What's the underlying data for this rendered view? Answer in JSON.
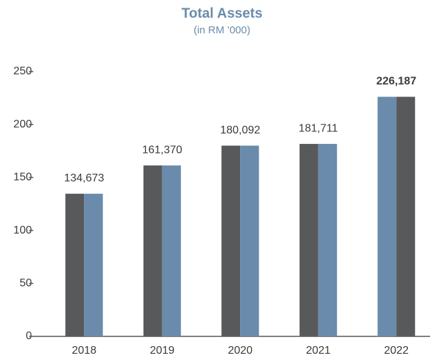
{
  "chart_data": {
    "type": "bar",
    "title": "Total Assets",
    "subtitle": "(in RM ’000)",
    "categories": [
      "2018",
      "2019",
      "2020",
      "2021",
      "2022"
    ],
    "values": [
      134.673,
      161.37,
      180.092,
      181.711,
      226.187
    ],
    "value_labels": [
      "134,673",
      "161,370",
      "180,092",
      "181,711",
      "226,187"
    ],
    "colors": [
      "#58595b",
      "#6a8bab"
    ],
    "ylim": [
      0,
      250
    ],
    "yticks": [
      0,
      50,
      100,
      150,
      200,
      250
    ],
    "grid": false
  }
}
